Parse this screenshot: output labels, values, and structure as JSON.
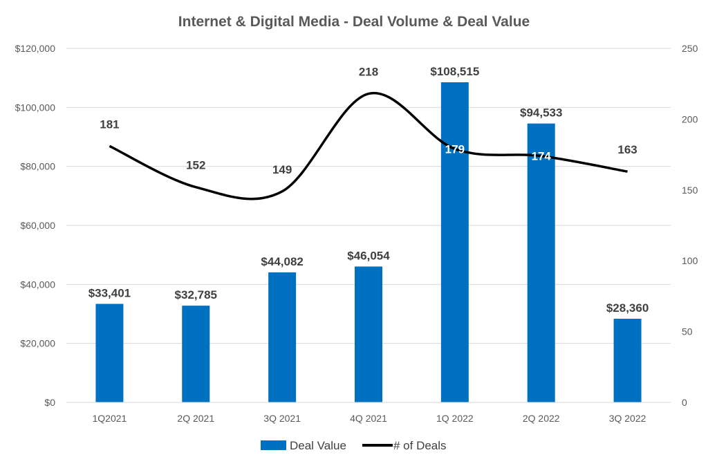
{
  "chart_data": {
    "type": "bar",
    "title": "Internet & Digital Media - Deal Volume & Deal Value",
    "categories": [
      "1Q2021",
      "2Q 2021",
      "3Q 2021",
      "4Q 2021",
      "1Q 2022",
      "2Q 2022",
      "3Q 2022"
    ],
    "series": [
      {
        "name": "Deal Value",
        "type": "bar",
        "axis": "left",
        "color": "#0070C0",
        "values": [
          33401,
          32785,
          44082,
          46054,
          108515,
          94533,
          28360
        ],
        "labels": [
          "$33,401",
          "$32,785",
          "$44,082",
          "$46,054",
          "$108,515",
          "$94,533",
          "$28,360"
        ]
      },
      {
        "name": "# of Deals",
        "type": "line",
        "axis": "right",
        "color": "#000000",
        "smooth": true,
        "values": [
          181,
          152,
          149,
          218,
          179,
          174,
          163
        ],
        "labels": [
          "181",
          "152",
          "149",
          "218",
          "179",
          "174",
          "163"
        ]
      }
    ],
    "y_left": {
      "ylim": [
        0,
        120000
      ],
      "ticks": [
        0,
        20000,
        40000,
        60000,
        80000,
        100000,
        120000
      ],
      "tick_labels": [
        "$0",
        "$20,000",
        "$40,000",
        "$60,000",
        "$80,000",
        "$100,000",
        "$120,000"
      ]
    },
    "y_right": {
      "ylim": [
        0,
        250
      ],
      "ticks": [
        0,
        50,
        100,
        150,
        200,
        250
      ],
      "tick_labels": [
        "0",
        "50",
        "100",
        "150",
        "200",
        "250"
      ]
    },
    "grid": true,
    "legend_position": "bottom"
  }
}
